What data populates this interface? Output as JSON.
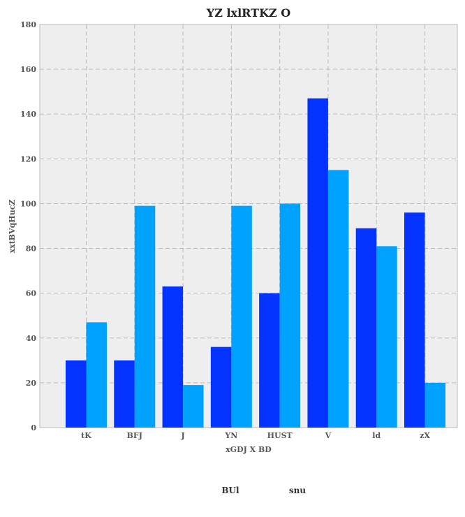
{
  "chart_data": {
    "type": "bar",
    "title": "YZ lxlRTKZ O",
    "xlabel": "xGDJ X BD",
    "ylabel": "xxtBVqHucZ",
    "categories": [
      "tK",
      "BFJ",
      "J",
      "YN",
      "HUST",
      "V",
      "ld",
      "zX"
    ],
    "series": [
      {
        "name": "BUl",
        "color": "#0433ff",
        "values": [
          30,
          30,
          63,
          36,
          60,
          147,
          89,
          96
        ]
      },
      {
        "name": "snu",
        "color": "#00a2ff",
        "values": [
          47,
          99,
          19,
          99,
          100,
          115,
          81,
          20
        ]
      }
    ],
    "ylim": [
      0,
      180
    ],
    "yticks": [
      0,
      20,
      40,
      60,
      80,
      100,
      120,
      140,
      160,
      180
    ],
    "grid": true,
    "legend_position": "bottom-center",
    "plot_background": "#eeeeee"
  }
}
